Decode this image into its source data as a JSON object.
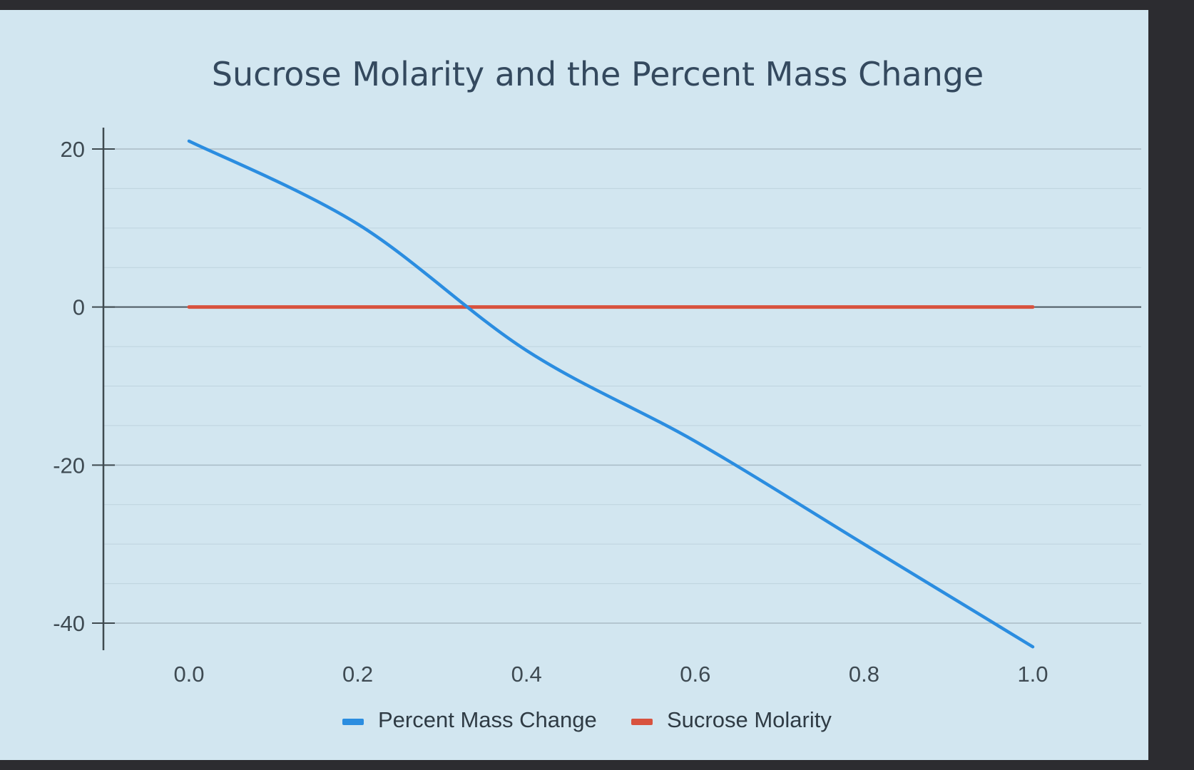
{
  "chart_data": {
    "type": "line",
    "title": "Sucrose Molarity and the Percent Mass Change",
    "xlabel": "",
    "ylabel": "",
    "x": [
      0.0,
      0.2,
      0.4,
      0.6,
      0.8,
      1.0
    ],
    "x_tick_labels": [
      "0.0",
      "0.2",
      "0.4",
      "0.6",
      "0.8",
      "1.0"
    ],
    "y_ticks": [
      20,
      0,
      -20,
      -40
    ],
    "y_tick_labels": [
      "20",
      "0",
      "-20",
      "-40"
    ],
    "xlim": [
      0.0,
      1.0
    ],
    "ylim": [
      -40,
      20
    ],
    "grid": true,
    "legend_position": "bottom",
    "series": [
      {
        "name": "Percent Mass Change",
        "color": "#2b8de0",
        "values": [
          21,
          10.5,
          -5.5,
          -17,
          -30,
          -43
        ]
      },
      {
        "name": "Sucrose Molarity",
        "color": "#d8523e",
        "values": [
          0,
          0,
          0,
          0,
          0,
          0
        ]
      }
    ]
  }
}
